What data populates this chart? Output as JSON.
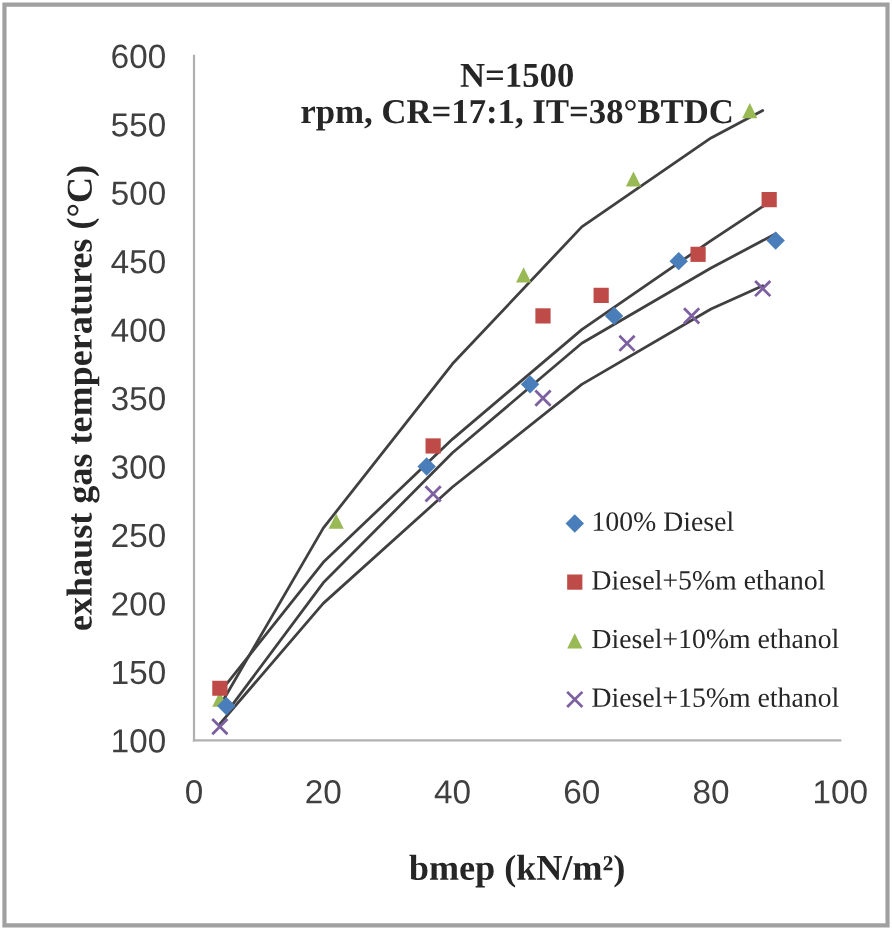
{
  "chart_data": {
    "type": "scatter",
    "title": "N=1500\nrpm, CR=17:1, IT=38°BTDC",
    "xlabel": "bmep (kN/m²)",
    "ylabel": "exhaust gas temperatures (°C)",
    "xlim": [
      0,
      100
    ],
    "xticks": [
      0,
      20,
      40,
      60,
      80,
      100
    ],
    "ylim": [
      100,
      600
    ],
    "yticks": [
      100,
      150,
      200,
      250,
      300,
      350,
      400,
      450,
      500,
      550,
      600
    ],
    "grid": false,
    "legend": "bottom right",
    "series": [
      {
        "name": "100% Diesel",
        "color": "#4a7ebb",
        "marker": "diamond",
        "x": [
          5,
          36,
          52,
          65,
          75,
          90
        ],
        "values": [
          125,
          300,
          360,
          410,
          450,
          465
        ]
      },
      {
        "name": "Diesel+5%m ethanol",
        "color": "#be4b48",
        "marker": "square",
        "x": [
          4,
          37,
          54,
          63,
          78,
          89
        ],
        "values": [
          138,
          315,
          410,
          425,
          455,
          495
        ]
      },
      {
        "name": "Diesel+10%m ethanol",
        "color": "#98b954",
        "marker": "triangle",
        "x": [
          4,
          22,
          51,
          68,
          86
        ],
        "values": [
          130,
          260,
          440,
          510,
          560
        ]
      },
      {
        "name": "Diesel+15%m ethanol",
        "color": "#7d60a0",
        "marker": "cross",
        "x": [
          4,
          37,
          54,
          67,
          77,
          88
        ],
        "values": [
          110,
          280,
          350,
          390,
          410,
          430
        ]
      },
      {
        "type": "line",
        "color": "#404040",
        "marker": "none",
        "x": [
          5,
          20,
          40,
          60,
          80,
          90
        ],
        "values": [
          120,
          215,
          310,
          390,
          445,
          470
        ]
      },
      {
        "type": "line",
        "color": "#404040",
        "marker": "none",
        "x": [
          4,
          20,
          40,
          60,
          80,
          89
        ],
        "values": [
          135,
          230,
          320,
          400,
          465,
          493
        ]
      },
      {
        "type": "line",
        "color": "#404040",
        "marker": "none",
        "x": [
          4,
          20,
          40,
          60,
          80,
          88
        ],
        "values": [
          125,
          255,
          375,
          475,
          540,
          560
        ]
      },
      {
        "type": "line",
        "color": "#404040",
        "marker": "none",
        "x": [
          4,
          20,
          40,
          60,
          80,
          88
        ],
        "values": [
          112,
          200,
          285,
          360,
          415,
          432
        ]
      }
    ]
  }
}
